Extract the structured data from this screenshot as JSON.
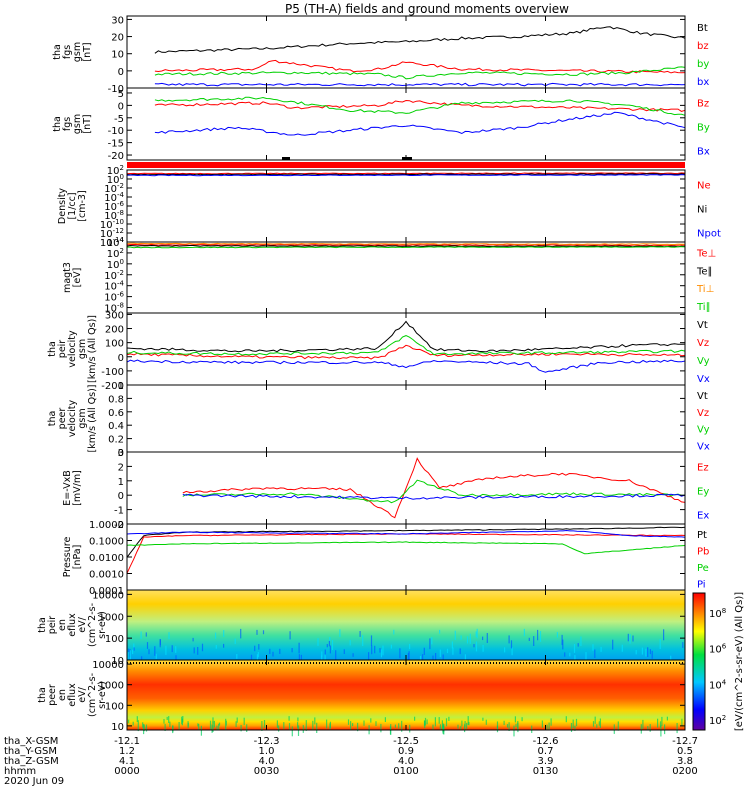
{
  "title": "P5 (TH-A) fields and ground moments overview",
  "chart_data": [
    {
      "id": "fgs",
      "type": "line",
      "ylabel": [
        "tha",
        "fgs",
        "gsm",
        "[nT]"
      ],
      "yticks": [
        30,
        20,
        10,
        0,
        -10
      ],
      "ylim": [
        -10,
        32
      ],
      "series": [
        {
          "name": "Bt",
          "color": "#000000",
          "x": [
            0.05,
            0.15,
            0.25,
            0.3,
            0.4,
            0.5,
            0.6,
            0.7,
            0.8,
            0.86,
            0.92,
            1.0
          ],
          "y": [
            11,
            12,
            13,
            14,
            16,
            17,
            19,
            20,
            22,
            26,
            22,
            19
          ]
        },
        {
          "name": "bz",
          "color": "#ff0000",
          "x": [
            0.05,
            0.23,
            0.26,
            0.4,
            0.45,
            0.5,
            0.6,
            0.8,
            1.0
          ],
          "y": [
            0,
            1,
            6,
            0,
            1,
            5,
            1,
            0,
            -1
          ]
        },
        {
          "name": "by",
          "color": "#00d000",
          "x": [
            0.05,
            0.3,
            0.45,
            0.5,
            0.6,
            0.8,
            0.9,
            1.0
          ],
          "y": [
            -2,
            -1,
            -2,
            -4,
            -1,
            -2,
            -1,
            2
          ]
        },
        {
          "name": "bx",
          "color": "#0000ff",
          "x": [
            0.05,
            0.5,
            1.0
          ],
          "y": [
            -8,
            -8,
            -8
          ]
        }
      ]
    },
    {
      "id": "fgs2",
      "type": "line",
      "ylabel": [
        "tha",
        "fgs",
        "gsm",
        "[nT]"
      ],
      "yticks": [
        5,
        0,
        -5,
        -10,
        -15,
        -20
      ],
      "ylim": [
        -22,
        7
      ],
      "series": [
        {
          "name": "Bz",
          "color": "#ff0000",
          "x": [
            0.05,
            0.25,
            0.3,
            0.45,
            0.5,
            0.6,
            0.8,
            1.0
          ],
          "y": [
            0,
            1,
            -1,
            0,
            2,
            0,
            -1,
            -2
          ]
        },
        {
          "name": "By",
          "color": "#00d000",
          "x": [
            0.05,
            0.25,
            0.4,
            0.5,
            0.6,
            0.8,
            0.9,
            1.0
          ],
          "y": [
            2,
            3,
            -2,
            -3,
            1,
            2,
            0,
            -4
          ]
        },
        {
          "name": "Bx",
          "color": "#0000ff",
          "x": [
            0.05,
            0.2,
            0.3,
            0.4,
            0.5,
            0.6,
            0.7,
            0.78,
            0.88,
            1.0
          ],
          "y": [
            -11,
            -9,
            -12,
            -10,
            -8,
            -11,
            -9,
            -6,
            -3,
            -9
          ]
        }
      ]
    },
    {
      "id": "density",
      "type": "line",
      "log": true,
      "ylabel": [
        "Density",
        "[1/cc]",
        "[cm-3]"
      ],
      "yticks": [
        "10^2",
        "10^0",
        "10^-2",
        "10^-4",
        "10^-6",
        "10^-8",
        "10^-10",
        "10^-12",
        "10^-14"
      ],
      "ylim": [
        -14,
        2
      ],
      "series": [
        {
          "name": "Ne",
          "color": "#ff0000",
          "x": [
            0,
            1
          ],
          "y": [
            1.2,
            1.3
          ]
        },
        {
          "name": "Ni",
          "color": "#000000",
          "x": [
            0,
            1
          ],
          "y": [
            1.0,
            1.1
          ]
        },
        {
          "name": "Npot",
          "color": "#0000ff",
          "x": [
            0,
            1
          ],
          "y": [
            0.8,
            0.9
          ]
        }
      ]
    },
    {
      "id": "temp",
      "type": "line",
      "log": true,
      "ylabel": [
        "magt3",
        "[eV]"
      ],
      "yticks": [
        "10^4",
        "10^2",
        "10^0",
        "10^-2",
        "10^-4",
        "10^-6",
        "10^-8"
      ],
      "ylim": [
        -9,
        4
      ],
      "series": [
        {
          "name": "Te⊥",
          "color": "#ff0000",
          "x": [
            0,
            1
          ],
          "y": [
            3.5,
            3.4
          ]
        },
        {
          "name": "Te∥",
          "color": "#000000",
          "x": [
            0,
            1
          ],
          "y": [
            3.3,
            3.2
          ]
        },
        {
          "name": "Ti⊥",
          "color": "#ff8c00",
          "x": [
            0,
            1
          ],
          "y": [
            3.7,
            3.6
          ]
        },
        {
          "name": "Ti∥",
          "color": "#00d000",
          "x": [
            0,
            1
          ],
          "y": [
            3.0,
            3.1
          ]
        }
      ]
    },
    {
      "id": "peir_vel",
      "type": "line",
      "ylabel": [
        "tha",
        "peir",
        "velocity",
        "gsm",
        "[km/s (All Qs)]"
      ],
      "yticks": [
        300,
        200,
        100,
        0,
        -100,
        -200
      ],
      "ylim": [
        -200,
        310
      ],
      "series": [
        {
          "name": "Vt",
          "color": "#000000",
          "x": [
            0,
            0.1,
            0.2,
            0.3,
            0.45,
            0.5,
            0.55,
            0.65,
            0.8,
            0.9,
            1.0
          ],
          "y": [
            60,
            50,
            40,
            45,
            60,
            250,
            50,
            40,
            60,
            80,
            90
          ]
        },
        {
          "name": "Vz",
          "color": "#ff0000",
          "x": [
            0,
            0.2,
            0.45,
            0.5,
            0.55,
            0.8,
            1.0
          ],
          "y": [
            20,
            0,
            -10,
            80,
            10,
            20,
            10
          ]
        },
        {
          "name": "Vy",
          "color": "#00d000",
          "x": [
            0,
            0.2,
            0.45,
            0.5,
            0.55,
            0.8,
            1.0
          ],
          "y": [
            30,
            20,
            30,
            150,
            20,
            30,
            40
          ]
        },
        {
          "name": "Vx",
          "color": "#0000ff",
          "x": [
            0,
            0.2,
            0.45,
            0.5,
            0.55,
            0.72,
            0.75,
            0.85,
            1.0
          ],
          "y": [
            -30,
            -40,
            -40,
            -70,
            -30,
            -50,
            -110,
            -40,
            -30
          ]
        }
      ]
    },
    {
      "id": "peer_vel",
      "type": "line",
      "ylabel": [
        "tha",
        "peer",
        "velocity",
        "gsm",
        "[km/s (All Qs)]"
      ],
      "yticks": [
        1.0,
        0.8,
        0.6,
        0.4,
        0.2,
        0.0
      ],
      "ylim": [
        0,
        1.0
      ],
      "series": [
        {
          "name": "Vt",
          "color": "#000000",
          "x": [],
          "y": []
        },
        {
          "name": "Vz",
          "color": "#ff0000",
          "x": [],
          "y": []
        },
        {
          "name": "Vy",
          "color": "#00d000",
          "x": [],
          "y": []
        },
        {
          "name": "Vx",
          "color": "#0000ff",
          "x": [],
          "y": []
        }
      ]
    },
    {
      "id": "efield",
      "type": "line",
      "ylabel": [
        "E=-VxB",
        "[mV/m]"
      ],
      "yticks": [
        3,
        2,
        1,
        0,
        -1,
        -2
      ],
      "ylim": [
        -2,
        3
      ],
      "series": [
        {
          "name": "Ez",
          "color": "#ff0000",
          "x": [
            0.1,
            0.25,
            0.4,
            0.48,
            0.52,
            0.56,
            0.65,
            0.78,
            0.9,
            1.0
          ],
          "y": [
            0.2,
            0.5,
            0.4,
            -1.5,
            2.5,
            0.5,
            1.2,
            1.5,
            1.0,
            -0.5
          ]
        },
        {
          "name": "Ey",
          "color": "#00d000",
          "x": [
            0.1,
            0.3,
            0.48,
            0.52,
            0.6,
            0.8,
            1.0
          ],
          "y": [
            0.0,
            0.1,
            -0.5,
            1.0,
            0.0,
            0.1,
            0.0
          ]
        },
        {
          "name": "Ex",
          "color": "#0000ff",
          "x": [
            0.1,
            0.5,
            1.0
          ],
          "y": [
            0.0,
            -0.2,
            0.0
          ]
        }
      ]
    },
    {
      "id": "pressure",
      "type": "line",
      "log": true,
      "ylabel": [
        "Pressure",
        "[nPa]"
      ],
      "yticks": [
        "1.0000",
        "0.1000",
        "0.0100",
        "0.0010",
        "0.0001"
      ],
      "ylim": [
        -4,
        0
      ],
      "series": [
        {
          "name": "Pt",
          "color": "#000000",
          "x": [
            0,
            0.03,
            0.1,
            0.5,
            0.8,
            1.0
          ],
          "y": [
            -2.0,
            -0.7,
            -0.5,
            -0.4,
            -0.3,
            -0.2
          ]
        },
        {
          "name": "Pb",
          "color": "#ff0000",
          "x": [
            0,
            0.03,
            0.1,
            0.5,
            1.0
          ],
          "y": [
            -3.0,
            -0.8,
            -0.7,
            -0.6,
            -0.7
          ]
        },
        {
          "name": "Pe",
          "color": "#00d000",
          "x": [
            0,
            0.1,
            0.5,
            0.78,
            0.82,
            1.0
          ],
          "y": [
            -1.3,
            -1.2,
            -1.1,
            -1.2,
            -1.8,
            -1.3
          ]
        },
        {
          "name": "Pi",
          "color": "#0000ff",
          "x": [
            0,
            0.1,
            0.5,
            0.8,
            0.9,
            1.0
          ],
          "y": [
            -0.6,
            -0.5,
            -0.6,
            -0.4,
            -0.7,
            -0.8
          ]
        }
      ]
    },
    {
      "id": "peir_spec",
      "type": "heatmap",
      "ylabel": [
        "tha",
        "peir",
        "en",
        "eflux",
        "eV/",
        "(cm^2-s-",
        "sr-eV)"
      ],
      "yticks": [
        "10000",
        "1000",
        "100",
        "10"
      ],
      "ylim": [
        1,
        4.2
      ]
    },
    {
      "id": "peer_spec",
      "type": "heatmap",
      "ylabel": [
        "tha",
        "peer",
        "en",
        "eflux",
        "eV/",
        "(cm^2-s-",
        "sr-eV)"
      ],
      "yticks": [
        "10000",
        "1000",
        "100",
        "10"
      ],
      "ylim": [
        0.8,
        4.2
      ]
    }
  ],
  "colorbar": {
    "label": "[eV/(cm^2-s-sr-eV) (All Qs)]",
    "ticks": [
      "10^8",
      "10^6",
      "10^4",
      "10^2"
    ]
  },
  "footer": {
    "rows": [
      {
        "label": "tha_X-GSM",
        "values": [
          "-12.1",
          "-12.3",
          "-12.5",
          "-12.6",
          "-12.7"
        ]
      },
      {
        "label": "tha_Y-GSM",
        "values": [
          "1.2",
          "1.0",
          "0.9",
          "0.7",
          "0.5"
        ]
      },
      {
        "label": "tha_Z-GSM",
        "values": [
          "4.1",
          "4.0",
          "4.0",
          "3.9",
          "3.8"
        ]
      },
      {
        "label": "hhmm",
        "values": [
          "0000",
          "0030",
          "0100",
          "0130",
          "0200"
        ]
      }
    ],
    "date": "2020 Jun 09"
  }
}
